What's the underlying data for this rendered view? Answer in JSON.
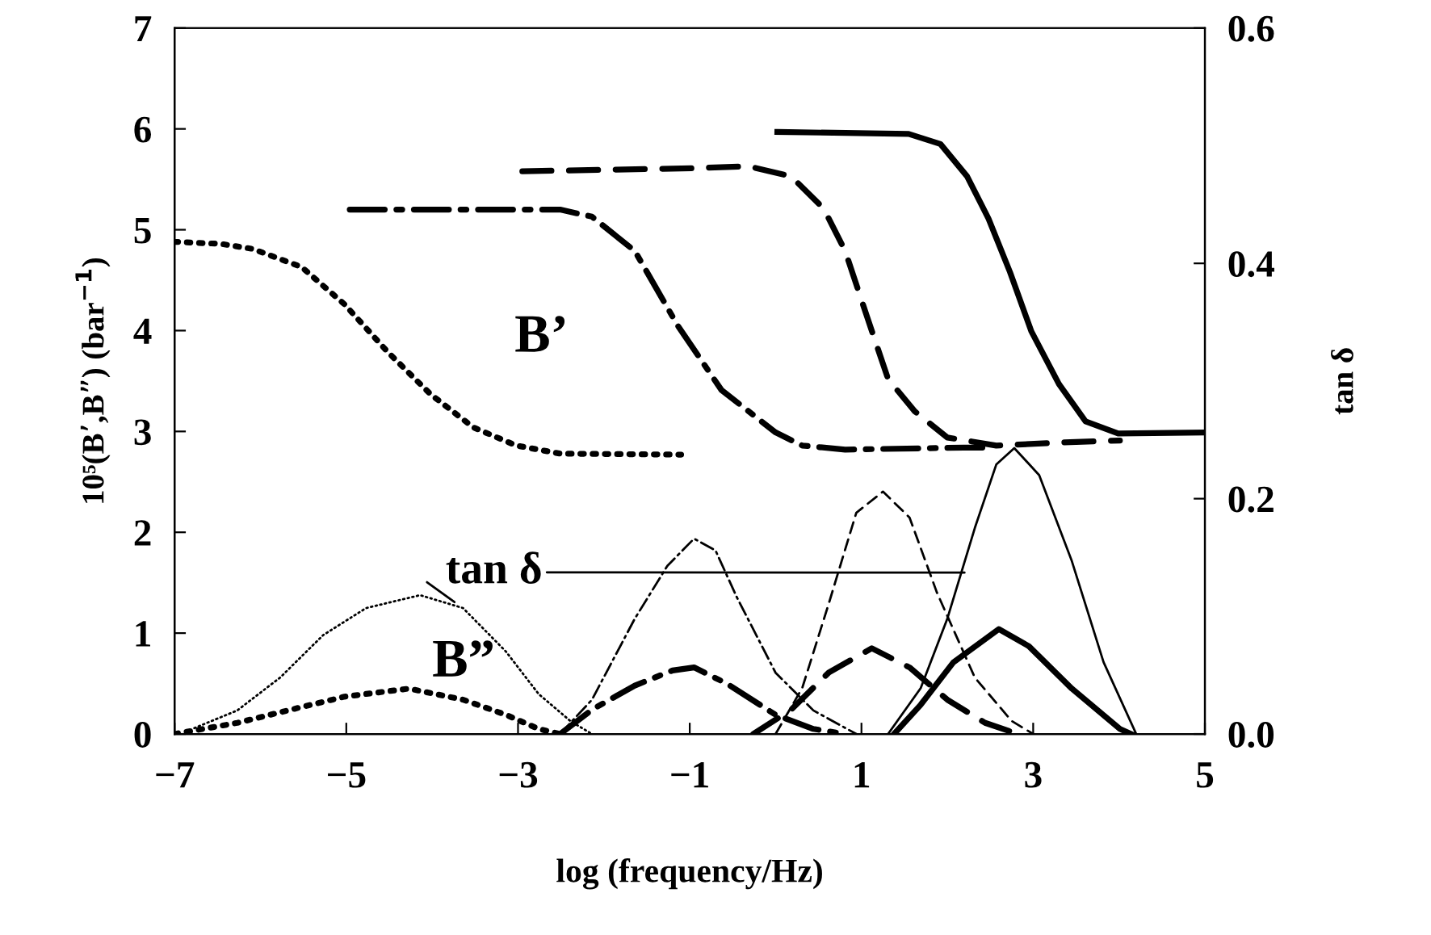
{
  "chart_data": {
    "type": "line",
    "xlabel": "log (frequency/Hz)",
    "ylabel": "10⁵(B’,B”) (bar$^{−1}$)",
    "y2label": "tan δ",
    "xlim": [
      -7,
      5
    ],
    "ylim": [
      0,
      7
    ],
    "y2lim": [
      0,
      0.6
    ],
    "xticks": [
      {
        "value": -7,
        "label": "−7"
      },
      {
        "value": -5,
        "label": "−5"
      },
      {
        "value": -3,
        "label": "−3"
      },
      {
        "value": -1,
        "label": "−1"
      },
      1,
      3,
      5
    ],
    "yticks": [
      0,
      1,
      2,
      3,
      4,
      5,
      6,
      7
    ],
    "y2ticks": [
      {
        "value": 0,
        "label": "0.0"
      },
      0.2,
      0.4,
      0.6
    ],
    "grid": false,
    "legend": false,
    "marker": "none",
    "annotations": [
      "B’",
      "B”",
      {
        "text": "tan δ",
        "x": 2.2,
        "y": 1.6
      }
    ],
    "series": [
      {
        "color": "#000000",
        "line_style": "dotted",
        "x": [
          -7,
          -6.46,
          -6.09,
          -5.52,
          -5.02,
          -4.52,
          -4.02,
          -3.52,
          -3.02,
          -2.51,
          -1.1
        ],
        "values": [
          4.88,
          4.86,
          4.81,
          4.63,
          4.26,
          3.79,
          3.37,
          3.04,
          2.86,
          2.78,
          2.77
        ]
      },
      {
        "color": "#000000",
        "line_style": "dashdot",
        "x": [
          -4.96,
          -2.51,
          -2.14,
          -1.64,
          -1.14,
          -0.63,
          0.0,
          0.31,
          0.81,
          2.19,
          2.5
        ],
        "values": [
          5.2,
          5.2,
          5.13,
          4.79,
          4.05,
          3.41,
          2.99,
          2.86,
          2.82,
          2.84,
          2.84
        ]
      },
      {
        "color": "#000000",
        "line_style": "dashed",
        "x": [
          -2.95,
          -0.95,
          -0.32,
          0.18,
          0.56,
          0.81,
          1.06,
          1.31,
          1.62,
          2.0,
          2.57,
          3.32,
          4.01
        ],
        "values": [
          5.58,
          5.61,
          5.63,
          5.53,
          5.21,
          4.79,
          4.15,
          3.52,
          3.2,
          2.94,
          2.86,
          2.89,
          2.91
        ]
      },
      {
        "color": "#000000",
        "line_style": "solid",
        "x": [
          0.02,
          1.55,
          1.92,
          2.23,
          2.48,
          2.73,
          2.98,
          3.3,
          3.61,
          3.99,
          5.0
        ],
        "values": [
          5.97,
          5.95,
          5.85,
          5.53,
          5.11,
          4.58,
          3.99,
          3.47,
          3.1,
          2.98,
          2.99
        ]
      },
      {
        "color": "#000000",
        "line_style": "dotted",
        "x": [
          -7,
          -6.27,
          -5.65,
          -5.02,
          -4.27,
          -3.64,
          -3.14,
          -2.76,
          -2.51
        ],
        "values": [
          0,
          0.11,
          0.24,
          0.37,
          0.45,
          0.34,
          0.19,
          0.05,
          0
        ]
      },
      {
        "color": "#000000",
        "line_style": "dashdot",
        "x": [
          -2.51,
          -2.14,
          -1.64,
          -1.2,
          -0.95,
          -0.57,
          0.0,
          0.44,
          0.81
        ],
        "values": [
          0,
          0.24,
          0.48,
          0.63,
          0.66,
          0.5,
          0.19,
          0.05,
          0
        ]
      },
      {
        "color": "#000000",
        "line_style": "dashed",
        "x": [
          -0.26,
          0.18,
          0.62,
          1.12,
          1.56,
          2.0,
          2.44,
          2.82
        ],
        "values": [
          0,
          0.24,
          0.61,
          0.85,
          0.66,
          0.34,
          0.11,
          0
        ]
      },
      {
        "color": "#000000",
        "line_style": "solid",
        "x": [
          1.38,
          1.69,
          2.07,
          2.6,
          2.95,
          3.45,
          4.01,
          4.14
        ],
        "values": [
          0,
          0.29,
          0.71,
          1.04,
          0.87,
          0.45,
          0.05,
          0
        ]
      },
      {
        "color": "#000000",
        "line_style": "dotted",
        "axis": "y2",
        "x": [
          -6.77,
          -6.27,
          -5.77,
          -5.27,
          -4.77,
          -4.14,
          -3.64,
          -3.14,
          -2.76,
          -2.39,
          -2.14
        ],
        "values": [
          0.005,
          0.02,
          0.048,
          0.084,
          0.107,
          0.118,
          0.107,
          0.07,
          0.034,
          0.011,
          0
        ]
      },
      {
        "color": "#000000",
        "line_style": "dashdot",
        "axis": "y2",
        "x": [
          -2.51,
          -2.14,
          -1.64,
          -1.26,
          -0.95,
          -0.7,
          -0.45,
          0.0,
          0.44,
          0.94
        ],
        "values": [
          0,
          0.029,
          0.098,
          0.143,
          0.166,
          0.156,
          0.116,
          0.052,
          0.02,
          0
        ]
      },
      {
        "color": "#000000",
        "line_style": "dashed",
        "axis": "y2",
        "x": [
          0.0,
          0.31,
          0.62,
          0.94,
          1.25,
          1.56,
          1.88,
          2.32,
          2.75,
          3.0
        ],
        "values": [
          0,
          0.039,
          0.111,
          0.188,
          0.206,
          0.184,
          0.12,
          0.048,
          0.011,
          0
        ]
      },
      {
        "color": "#000000",
        "line_style": "solid",
        "axis": "y2",
        "x": [
          1.31,
          1.69,
          2.0,
          2.32,
          2.57,
          2.78,
          3.07,
          3.45,
          3.82,
          4.2
        ],
        "values": [
          0,
          0.039,
          0.098,
          0.175,
          0.229,
          0.243,
          0.22,
          0.147,
          0.061,
          0
        ]
      }
    ]
  }
}
